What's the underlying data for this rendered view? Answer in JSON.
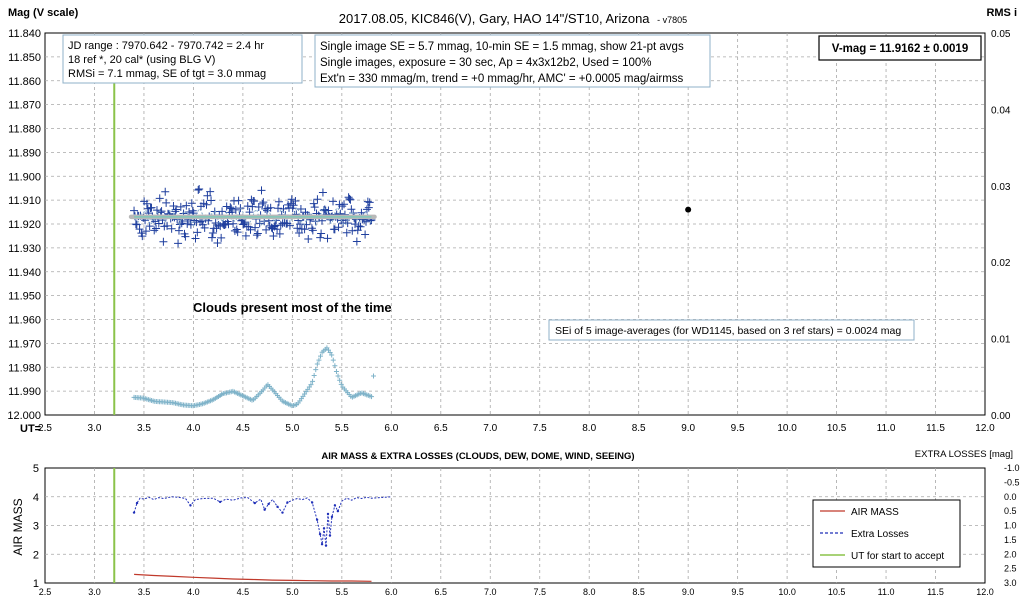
{
  "chart_data": [
    {
      "type": "scatter",
      "title": "2017.08.05,  KIC846(V),  Gary,  HAO  14\"/ST10, Arizona",
      "title_suffix": "- v7805",
      "ylabel": "Mag (V scale)",
      "y2label": "RMS i",
      "xlabel": "UT=",
      "xlim": [
        2.5,
        12.0
      ],
      "ylim": [
        11.84,
        12.0
      ],
      "y2lim": [
        0.0,
        0.05
      ],
      "y_reversed": true,
      "x_ticks": [
        "2.5",
        "3.0",
        "3.5",
        "4.0",
        "4.5",
        "5.0",
        "5.5",
        "6.0",
        "6.5",
        "7.0",
        "7.5",
        "8.0",
        "8.5",
        "9.0",
        "9.5",
        "10.0",
        "10.5",
        "11.0",
        "11.5",
        "12.0"
      ],
      "y_ticks": [
        "11.840",
        "11.850",
        "11.860",
        "11.870",
        "11.880",
        "11.890",
        "11.900",
        "11.910",
        "11.920",
        "11.930",
        "11.940",
        "11.950",
        "11.960",
        "11.970",
        "11.980",
        "11.990",
        "12.000"
      ],
      "y2_ticks": [
        "0.00",
        "0.01",
        "0.02",
        "0.03",
        "0.04",
        "0.05"
      ],
      "grid": true,
      "info_box_1": [
        "JD range : 7970.642 - 7970.742 = 2.4 hr",
        "18 ref *, 20 cal* (using BLG V)",
        "RMSi = 7.1 mmag, SE of tgt = 3.0 mmag"
      ],
      "info_box_2": [
        "Single image SE = 5.7 mmag, 10-min SE = 1.5 mmag, show 21-pt avgs",
        "Single images, exposure = 30 sec, Ap = 4x3x12b2, Used = 100%",
        "Ext'n = 330 mmag/m, trend = +0 mmag/hr, AMC' = +0.0005 mag/airmss"
      ],
      "vmag_box": "V-mag = 11.9162 ± 0.0019",
      "annotation_clouds": "Clouds  present most of the time",
      "annotation_se": "SEi of 5 image-averages (for WD1145, based on 3 ref stars) = 0.0024 mag",
      "ut_start_x": 3.2,
      "mag_range_x": [
        3.4,
        5.8
      ],
      "mean_mag": 11.917,
      "avg_point": {
        "x": 9.0,
        "y": 11.914
      },
      "rms_envelope": {
        "x": [
          3.4,
          3.5,
          3.6,
          3.7,
          3.8,
          3.9,
          4.0,
          4.1,
          4.2,
          4.3,
          4.4,
          4.5,
          4.6,
          4.7,
          4.75,
          4.8,
          4.9,
          5.0,
          5.05,
          5.1,
          5.2,
          5.25,
          5.3,
          5.35,
          5.4,
          5.45,
          5.5,
          5.6,
          5.7,
          5.8
        ],
        "y": [
          0.0023,
          0.0022,
          0.0018,
          0.0017,
          0.0016,
          0.0013,
          0.0012,
          0.0015,
          0.002,
          0.0028,
          0.0031,
          0.0025,
          0.0019,
          0.0032,
          0.004,
          0.0033,
          0.0018,
          0.0012,
          0.0014,
          0.0023,
          0.0042,
          0.0066,
          0.0082,
          0.0088,
          0.0078,
          0.0055,
          0.0038,
          0.0023,
          0.0029,
          0.0024
        ]
      }
    },
    {
      "type": "line",
      "title": "AIR MASS & EXTRA LOSSES (CLOUDS, DEW, DOME, WIND, SEEING)",
      "ylabel": "AIR MASS",
      "y2label": "EXTRA LOSSES [mag]",
      "xlim": [
        2.5,
        12.0
      ],
      "ylim": [
        1,
        5
      ],
      "y2lim": [
        -1.0,
        3.0
      ],
      "y2_reversed": true,
      "x_ticks": [
        "2.5",
        "3.0",
        "3.5",
        "4.0",
        "4.5",
        "5.0",
        "5.5",
        "6.0",
        "6.5",
        "7.0",
        "7.5",
        "8.0",
        "8.5",
        "9.0",
        "9.5",
        "10.0",
        "10.5",
        "11.0",
        "11.5",
        "12.0"
      ],
      "y_ticks": [
        "1",
        "2",
        "3",
        "4",
        "5"
      ],
      "y2_ticks": [
        "-1.0",
        "-0.5",
        "0.0",
        "0.5",
        "1.0",
        "1.5",
        "2.0",
        "2.5",
        "3.0"
      ],
      "legend_position": "right",
      "ut_start_x": 3.2,
      "series": [
        {
          "name": "AIR MASS",
          "color": "#c0392b",
          "x": [
            3.4,
            3.6,
            3.8,
            4.0,
            4.2,
            4.4,
            4.6,
            4.8,
            5.0,
            5.2,
            5.4,
            5.6,
            5.8
          ],
          "y": [
            1.3,
            1.26,
            1.23,
            1.2,
            1.17,
            1.14,
            1.12,
            1.1,
            1.09,
            1.08,
            1.07,
            1.07,
            1.06
          ]
        },
        {
          "name": "Extra Losses",
          "color": "#1f2fb8",
          "x": [
            3.4,
            3.43,
            3.46,
            3.5,
            3.55,
            3.6,
            3.65,
            3.7,
            3.78,
            3.85,
            3.92,
            3.97,
            4.02,
            4.1,
            4.2,
            4.27,
            4.33,
            4.4,
            4.48,
            4.55,
            4.62,
            4.68,
            4.72,
            4.76,
            4.8,
            4.85,
            4.9,
            4.95,
            5.0,
            5.05,
            5.1,
            5.15,
            5.2,
            5.25,
            5.28,
            5.3,
            5.32,
            5.34,
            5.36,
            5.38,
            5.4,
            5.43,
            5.46,
            5.5,
            5.55,
            5.6,
            5.65,
            5.7,
            5.75,
            5.8,
            6.0
          ],
          "y": [
            0.55,
            0.22,
            0.05,
            0.08,
            0.02,
            0.1,
            0.03,
            0.06,
            0.0,
            0.02,
            0.06,
            0.3,
            0.1,
            0.06,
            0.05,
            0.18,
            0.08,
            0.12,
            0.04,
            0.03,
            0.22,
            0.08,
            0.45,
            0.25,
            0.1,
            0.35,
            0.55,
            0.2,
            0.12,
            0.06,
            0.1,
            0.04,
            0.2,
            0.8,
            1.3,
            1.65,
            1.1,
            1.7,
            0.6,
            1.35,
            0.7,
            0.3,
            0.5,
            0.15,
            0.05,
            0.12,
            0.03,
            0.06,
            0.02,
            0.05,
            0.0
          ]
        },
        {
          "name": "UT for start to accept",
          "color": "#8bc34a",
          "x": [
            3.2,
            3.2
          ],
          "y": [
            1,
            5
          ]
        }
      ]
    }
  ]
}
